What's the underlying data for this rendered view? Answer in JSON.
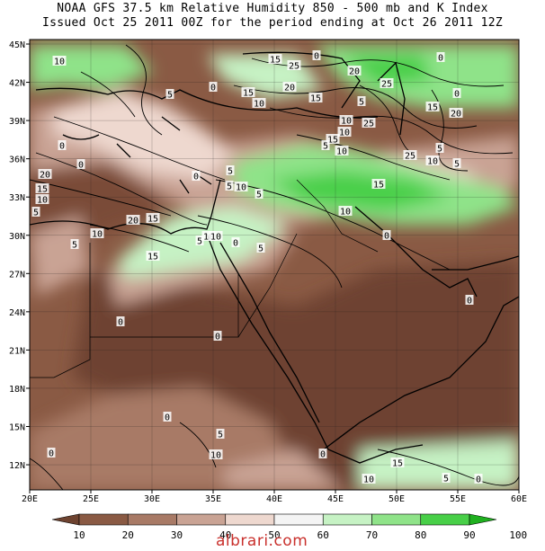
{
  "title_line1": "NOAA GFS 37.5 km Relative Humidity 850 - 500 mb and K Index",
  "title_line2": "Issued Oct 25 2011 00Z for the period ending at Oct 26 2011 12Z",
  "lat_labels": [
    "45N",
    "42N",
    "39N",
    "36N",
    "33N",
    "30N",
    "27N",
    "24N",
    "21N",
    "18N",
    "15N",
    "12N"
  ],
  "lon_labels": [
    "20E",
    "25E",
    "30E",
    "35E",
    "40E",
    "45E",
    "50E",
    "55E",
    "60E"
  ],
  "colorbar": {
    "labels": [
      "10",
      "20",
      "30",
      "40",
      "50",
      "60",
      "70",
      "80",
      "90",
      "100"
    ],
    "colors": [
      "#6e4330",
      "#8a5a44",
      "#a87a66",
      "#c9a394",
      "#eed8cf",
      "#f4f4f4",
      "#c6f2c4",
      "#8fe389",
      "#48cf48",
      "#1fb01f"
    ]
  },
  "contour_labels": [
    {
      "t": "10"
    },
    {
      "t": "15"
    },
    {
      "t": "25"
    },
    {
      "t": "0"
    },
    {
      "t": "20"
    },
    {
      "t": "25"
    },
    {
      "t": "0"
    },
    {
      "t": "0"
    },
    {
      "t": "15"
    },
    {
      "t": "20"
    },
    {
      "t": "10"
    },
    {
      "t": "5"
    },
    {
      "t": "0"
    },
    {
      "t": "15"
    },
    {
      "t": "5"
    },
    {
      "t": "10"
    },
    {
      "t": "20"
    },
    {
      "t": "25"
    },
    {
      "t": "10"
    },
    {
      "t": "15"
    },
    {
      "t": "5"
    },
    {
      "t": "15"
    },
    {
      "t": "20"
    },
    {
      "t": "10"
    },
    {
      "t": "25"
    },
    {
      "t": "5"
    },
    {
      "t": "10"
    },
    {
      "t": "5"
    },
    {
      "t": "20"
    },
    {
      "t": "15"
    },
    {
      "t": "5"
    },
    {
      "t": "5"
    },
    {
      "t": "10"
    },
    {
      "t": "5"
    },
    {
      "t": "0"
    },
    {
      "t": "15"
    },
    {
      "t": "10"
    },
    {
      "t": "10"
    },
    {
      "t": "0"
    },
    {
      "t": "10"
    },
    {
      "t": "5"
    },
    {
      "t": "20"
    },
    {
      "t": "15"
    },
    {
      "t": "15"
    },
    {
      "t": "0"
    },
    {
      "t": "5"
    },
    {
      "t": "10"
    },
    {
      "t": "0"
    },
    {
      "t": "0"
    },
    {
      "t": "0"
    },
    {
      "t": "0"
    },
    {
      "t": "0"
    },
    {
      "t": "5"
    },
    {
      "t": "10"
    },
    {
      "t": "0"
    },
    {
      "t": "5"
    },
    {
      "t": "10"
    },
    {
      "t": "15"
    },
    {
      "t": "5"
    },
    {
      "t": "0"
    },
    {
      "t": "10"
    },
    {
      "t": "5"
    },
    {
      "t": "0"
    },
    {
      "t": "0"
    }
  ],
  "credit": "albrari.com"
}
